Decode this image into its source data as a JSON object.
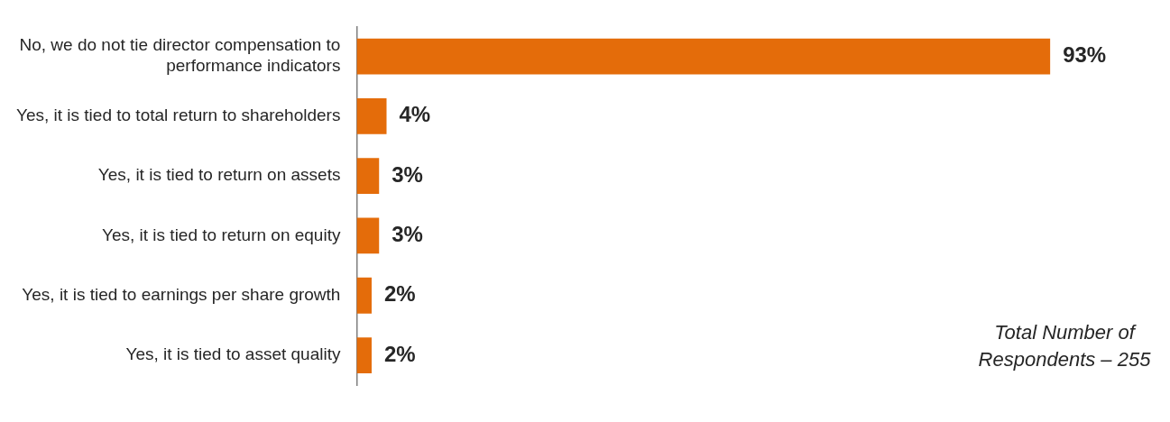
{
  "chart_data": {
    "type": "bar",
    "orientation": "horizontal",
    "categories": [
      "No, we do not tie director compensation to performance indicators",
      "Yes, it is tied to total return to shareholders",
      "Yes, it is tied to return on assets",
      "Yes, it is tied to return on equity",
      "Yes, it is tied to earnings per share growth",
      "Yes, it is tied to asset quality"
    ],
    "values": [
      93,
      4,
      3,
      3,
      2,
      2
    ],
    "value_labels": [
      "93%",
      "4%",
      "3%",
      "3%",
      "2%",
      "2%"
    ],
    "color": "#e46c0a",
    "legend": false,
    "annotations": [
      "Total Number of Respondents – 255"
    ]
  }
}
